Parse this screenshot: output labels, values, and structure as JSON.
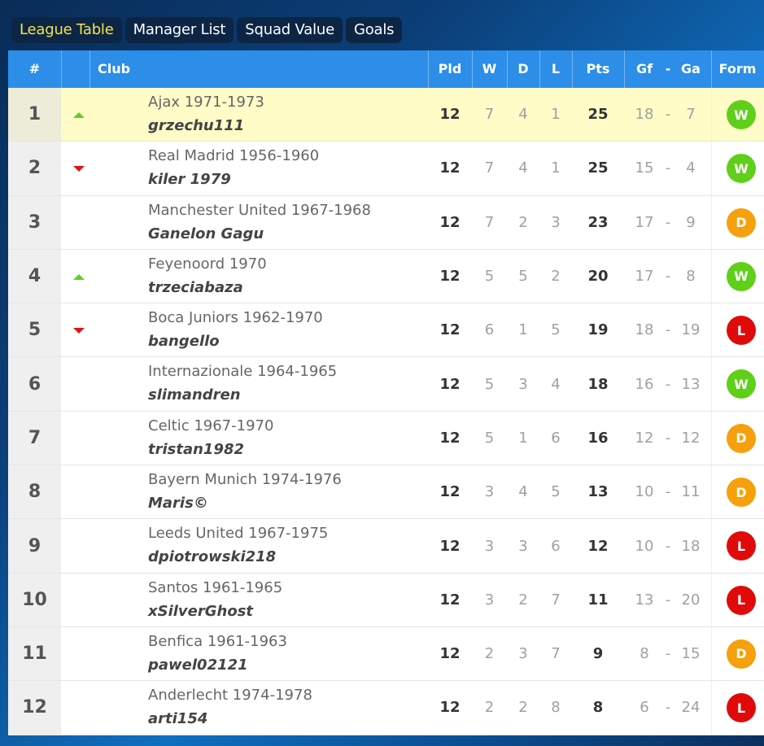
{
  "tabs": [
    {
      "label": "League Table",
      "active": true
    },
    {
      "label": "Manager List",
      "active": false
    },
    {
      "label": "Squad Value",
      "active": false
    },
    {
      "label": "Goals",
      "active": false
    }
  ],
  "headers": {
    "rank": "#",
    "club": "Club",
    "pld": "Pld",
    "w": "W",
    "d": "D",
    "l": "L",
    "pts": "Pts",
    "gf": "Gf",
    "dash": "-",
    "ga": "Ga",
    "form": "Form"
  },
  "colors": {
    "W": "#5fcf1a",
    "D": "#f5a00c",
    "L": "#e00a0a",
    "up": "#5fcf2a",
    "down": "#e01515"
  },
  "rows": [
    {
      "rank": "1",
      "move": "up",
      "club": "Ajax 1971-1973",
      "manager": "grzechu111",
      "pld": "12",
      "w": "7",
      "d": "4",
      "l": "1",
      "pts": "25",
      "gf": "18",
      "ga": "7",
      "form": "W",
      "highlight": true
    },
    {
      "rank": "2",
      "move": "down",
      "club": "Real Madrid 1956-1960",
      "manager": "kiler 1979",
      "pld": "12",
      "w": "7",
      "d": "4",
      "l": "1",
      "pts": "25",
      "gf": "15",
      "ga": "4",
      "form": "W"
    },
    {
      "rank": "3",
      "move": "",
      "club": "Manchester United 1967-1968",
      "manager": "Ganelon Gagu",
      "pld": "12",
      "w": "7",
      "d": "2",
      "l": "3",
      "pts": "23",
      "gf": "17",
      "ga": "9",
      "form": "D"
    },
    {
      "rank": "4",
      "move": "up",
      "club": "Feyenoord 1970",
      "manager": "trzeciabaza",
      "pld": "12",
      "w": "5",
      "d": "5",
      "l": "2",
      "pts": "20",
      "gf": "17",
      "ga": "8",
      "form": "W"
    },
    {
      "rank": "5",
      "move": "down",
      "club": "Boca Juniors 1962-1970",
      "manager": "bangello",
      "pld": "12",
      "w": "6",
      "d": "1",
      "l": "5",
      "pts": "19",
      "gf": "18",
      "ga": "19",
      "form": "L"
    },
    {
      "rank": "6",
      "move": "",
      "club": "Internazionale 1964-1965",
      "manager": "slimandren",
      "pld": "12",
      "w": "5",
      "d": "3",
      "l": "4",
      "pts": "18",
      "gf": "16",
      "ga": "13",
      "form": "W"
    },
    {
      "rank": "7",
      "move": "",
      "club": "Celtic 1967-1970",
      "manager": "tristan1982",
      "pld": "12",
      "w": "5",
      "d": "1",
      "l": "6",
      "pts": "16",
      "gf": "12",
      "ga": "12",
      "form": "D"
    },
    {
      "rank": "8",
      "move": "",
      "club": "Bayern Munich 1974-1976",
      "manager": "Maris©",
      "pld": "12",
      "w": "3",
      "d": "4",
      "l": "5",
      "pts": "13",
      "gf": "10",
      "ga": "11",
      "form": "D"
    },
    {
      "rank": "9",
      "move": "",
      "club": "Leeds United 1967-1975",
      "manager": "dpiotrowski218",
      "pld": "12",
      "w": "3",
      "d": "3",
      "l": "6",
      "pts": "12",
      "gf": "10",
      "ga": "18",
      "form": "L"
    },
    {
      "rank": "10",
      "move": "",
      "club": "Santos 1961-1965",
      "manager": "xSilverGhost",
      "pld": "12",
      "w": "3",
      "d": "2",
      "l": "7",
      "pts": "11",
      "gf": "13",
      "ga": "20",
      "form": "L"
    },
    {
      "rank": "11",
      "move": "",
      "club": "Benfica 1961-1963",
      "manager": "pawel02121",
      "pld": "12",
      "w": "2",
      "d": "3",
      "l": "7",
      "pts": "9",
      "gf": "8",
      "ga": "15",
      "form": "D"
    },
    {
      "rank": "12",
      "move": "",
      "club": "Anderlecht 1974-1978",
      "manager": "arti154",
      "pld": "12",
      "w": "2",
      "d": "2",
      "l": "8",
      "pts": "8",
      "gf": "6",
      "ga": "24",
      "form": "L"
    }
  ]
}
